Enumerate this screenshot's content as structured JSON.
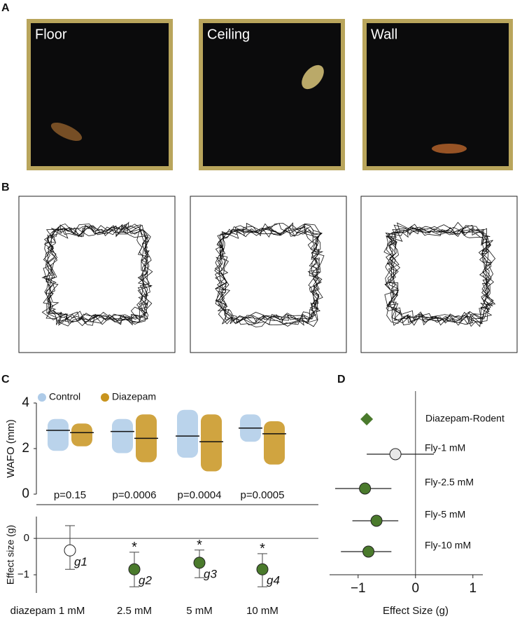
{
  "panels": {
    "A": {
      "label": "A",
      "photos": [
        "Floor",
        "Ceiling",
        "Wall"
      ]
    },
    "B": {
      "label": "B"
    },
    "C": {
      "label": "C"
    },
    "D": {
      "label": "D"
    }
  },
  "chart_data": [
    {
      "type": "swarm",
      "ylabel": "WAFO (mm)",
      "ylim": [
        0,
        4
      ],
      "yticks": [
        0,
        2,
        4
      ],
      "series": [
        {
          "name": "Control",
          "color": "#aecbe8",
          "values": [
            2.8,
            2.75,
            2.55,
            2.9
          ],
          "ranges": [
            [
              1.9,
              3.3
            ],
            [
              1.8,
              3.3
            ],
            [
              1.6,
              3.7
            ],
            [
              2.3,
              3.5
            ]
          ]
        },
        {
          "name": "Diazepam",
          "color": "#c8941e",
          "values": [
            2.7,
            2.45,
            2.3,
            2.65
          ],
          "ranges": [
            [
              2.1,
              3.1
            ],
            [
              1.4,
              3.5
            ],
            [
              1.0,
              3.5
            ],
            [
              1.3,
              3.2
            ]
          ]
        }
      ],
      "annotations": [
        "p=0.15",
        "p=0.0006",
        "p=0.0004",
        "p=0.0005"
      ]
    },
    {
      "type": "effect",
      "ylabel": "Effect size (g)",
      "ylim": [
        -1.5,
        0.6
      ],
      "yticks": [
        0,
        {
          "value": -1,
          "label": "−1"
        }
      ],
      "categories": [
        "diazepam 1 mM",
        "2.5 mM",
        "5 mM",
        "10 mM"
      ],
      "values": [
        -0.33,
        -0.85,
        -0.67,
        -0.85
      ],
      "ci": [
        [
          -0.85,
          0.35
        ],
        [
          -1.33,
          -0.38
        ],
        [
          -1.08,
          -0.32
        ],
        [
          -1.33,
          -0.42
        ]
      ],
      "point_labels": [
        "g1",
        "g2",
        "g3",
        "g4"
      ],
      "significant": [
        false,
        true,
        true,
        true
      ],
      "marker": "*",
      "colors": [
        "#ffffff",
        "#4a7a2c",
        "#4a7a2c",
        "#4a7a2c"
      ]
    },
    {
      "type": "forest",
      "xlabel": "Effect Size (g)",
      "xlim": [
        -1.4,
        1.1
      ],
      "xticks": [
        {
          "value": -1,
          "label": "−1"
        },
        0,
        1
      ],
      "categories": [
        "Diazepam-Rodent",
        "Fly-1 mM",
        "Fly-2.5 mM",
        "Fly-5 mM",
        "Fly-10 mM"
      ],
      "values": [
        -0.85,
        -0.35,
        -0.88,
        -0.68,
        -0.82
      ],
      "ci": [
        null,
        [
          -0.85,
          0.32
        ],
        [
          -1.4,
          -0.42
        ],
        [
          -1.1,
          -0.3
        ],
        [
          -1.3,
          -0.42
        ]
      ],
      "markers": [
        "diamond",
        "circle",
        "circle",
        "circle",
        "circle"
      ],
      "colors": [
        "#4a7a2c",
        "#e8e8e8",
        "#4a7a2c",
        "#4a7a2c",
        "#4a7a2c"
      ]
    }
  ]
}
